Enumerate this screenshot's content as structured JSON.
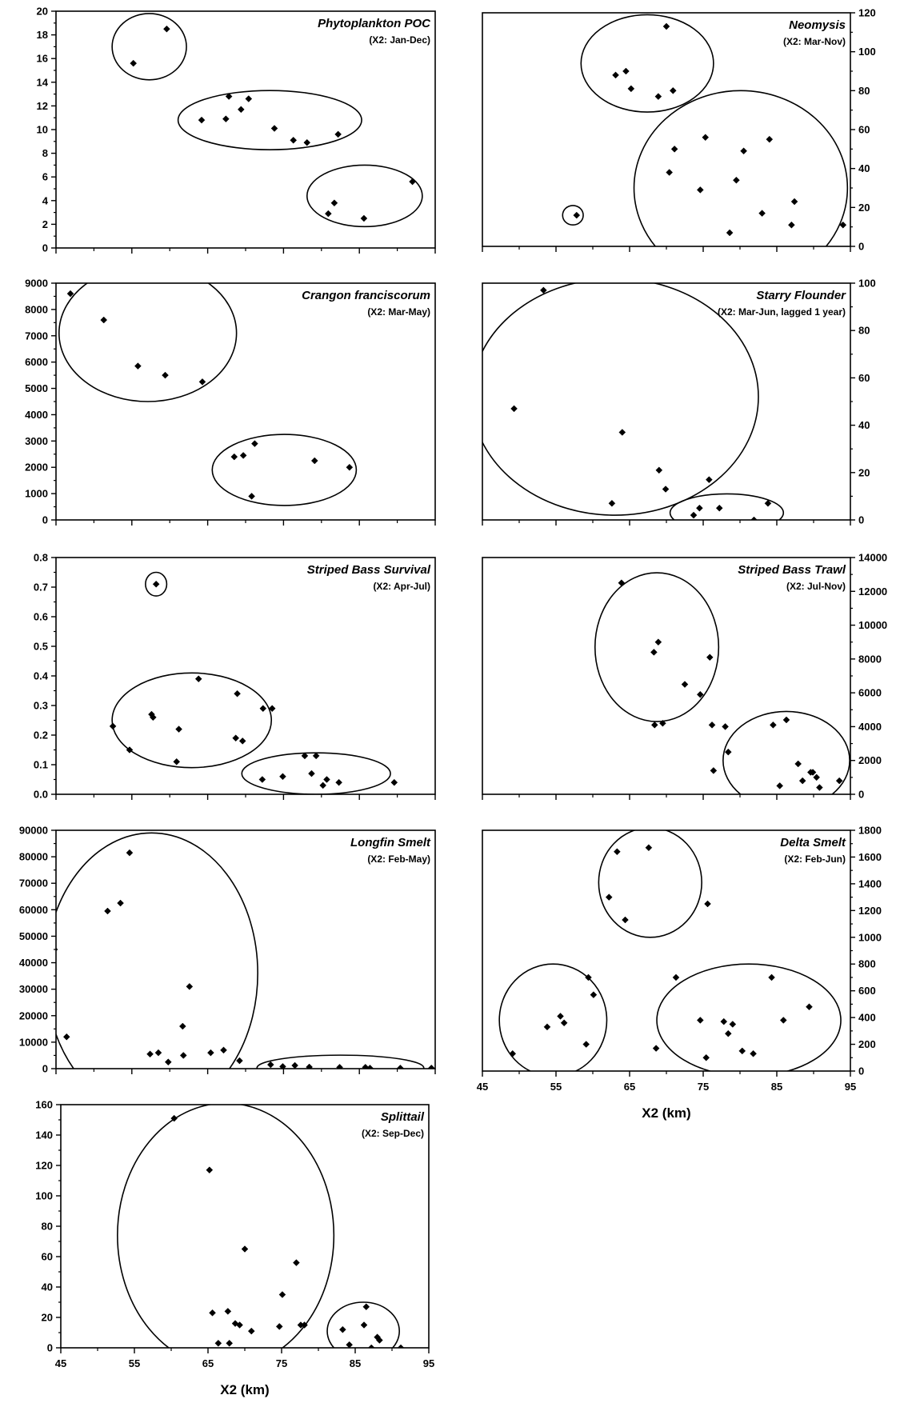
{
  "chart_data": [
    {
      "type": "scatter",
      "title": "Phytoplankton POC",
      "subtitle": "(X2: Jan-Dec)",
      "xlim": [
        45,
        95
      ],
      "ylim": [
        0,
        20
      ],
      "x_ticks": [
        45,
        55,
        65,
        75,
        85,
        95
      ],
      "y_ticks": [
        0,
        2,
        4,
        6,
        8,
        10,
        12,
        14,
        16,
        18,
        20
      ],
      "y_axis_side": "left",
      "x_tick_labels_shown": false,
      "points": [
        {
          "x": 55.2,
          "y": 15.6
        },
        {
          "x": 59.6,
          "y": 18.5
        },
        {
          "x": 64.2,
          "y": 10.8
        },
        {
          "x": 67.4,
          "y": 10.9
        },
        {
          "x": 67.8,
          "y": 12.8
        },
        {
          "x": 69.4,
          "y": 11.7
        },
        {
          "x": 70.4,
          "y": 12.6
        },
        {
          "x": 73.8,
          "y": 10.1
        },
        {
          "x": 76.3,
          "y": 9.1
        },
        {
          "x": 78.1,
          "y": 8.9
        },
        {
          "x": 82.2,
          "y": 9.6
        },
        {
          "x": 80.9,
          "y": 2.9
        },
        {
          "x": 81.7,
          "y": 3.8
        },
        {
          "x": 85.6,
          "y": 2.5
        },
        {
          "x": 92.0,
          "y": 5.6
        }
      ],
      "ellipses": [
        {
          "cx": 57.3,
          "cy": 17.0,
          "rx": 4.9,
          "ry": 2.8
        },
        {
          "cx": 73.2,
          "cy": 10.8,
          "rx": 12.1,
          "ry": 2.5
        },
        {
          "cx": 85.7,
          "cy": 4.4,
          "rx": 7.6,
          "ry": 2.6
        }
      ]
    },
    {
      "type": "scatter",
      "title": "Neomysis",
      "subtitle": "(X2: Mar-Nov)",
      "xlim": [
        45,
        95
      ],
      "ylim": [
        0,
        120
      ],
      "x_ticks": [
        45,
        55,
        65,
        75,
        85,
        95
      ],
      "y_ticks": [
        0,
        20,
        40,
        60,
        80,
        100,
        120
      ],
      "y_axis_side": "right",
      "x_tick_labels_shown": false,
      "points": [
        {
          "x": 57.8,
          "y": 16.0
        },
        {
          "x": 63.1,
          "y": 88.0
        },
        {
          "x": 64.5,
          "y": 90.0
        },
        {
          "x": 65.2,
          "y": 81.0
        },
        {
          "x": 68.9,
          "y": 77.0
        },
        {
          "x": 70.0,
          "y": 113.0
        },
        {
          "x": 70.9,
          "y": 80.0
        },
        {
          "x": 70.4,
          "y": 38.0
        },
        {
          "x": 71.1,
          "y": 50.0
        },
        {
          "x": 74.6,
          "y": 29.0
        },
        {
          "x": 75.3,
          "y": 56.0
        },
        {
          "x": 78.6,
          "y": 7.0
        },
        {
          "x": 79.5,
          "y": 34.0
        },
        {
          "x": 80.5,
          "y": 49.0
        },
        {
          "x": 83.0,
          "y": 17.0
        },
        {
          "x": 84.0,
          "y": 55.0
        },
        {
          "x": 87.0,
          "y": 11.0
        },
        {
          "x": 87.4,
          "y": 23.0
        },
        {
          "x": 94.0,
          "y": 11.0
        }
      ],
      "ellipses": [
        {
          "cx": 57.3,
          "cy": 16.0,
          "rx": 1.4,
          "ry": 5.0
        },
        {
          "cx": 67.4,
          "cy": 94.0,
          "rx": 9.0,
          "ry": 25.0
        },
        {
          "cx": 80.1,
          "cy": 30.0,
          "rx": 14.5,
          "ry": 50.0
        }
      ]
    },
    {
      "type": "scatter",
      "title": "Crangon franciscorum",
      "subtitle": "(X2: Mar-May)",
      "xlim": [
        45,
        95
      ],
      "ylim": [
        0,
        9000
      ],
      "x_ticks": [
        45,
        55,
        65,
        75,
        85,
        95
      ],
      "y_ticks": [
        0,
        1000,
        2000,
        3000,
        4000,
        5000,
        6000,
        7000,
        8000,
        9000
      ],
      "y_axis_side": "left",
      "x_tick_labels_shown": false,
      "points": [
        {
          "x": 46.9,
          "y": 8600
        },
        {
          "x": 51.3,
          "y": 7600
        },
        {
          "x": 55.8,
          "y": 5850
        },
        {
          "x": 59.4,
          "y": 5500
        },
        {
          "x": 64.3,
          "y": 5250
        },
        {
          "x": 68.5,
          "y": 2400
        },
        {
          "x": 69.7,
          "y": 2450
        },
        {
          "x": 70.8,
          "y": 900
        },
        {
          "x": 71.2,
          "y": 2900
        },
        {
          "x": 79.1,
          "y": 2250
        },
        {
          "x": 83.7,
          "y": 2000
        }
      ],
      "ellipses": [
        {
          "cx": 57.1,
          "cy": 7100,
          "rx": 11.7,
          "ry": 2600
        },
        {
          "cx": 75.1,
          "cy": 1900,
          "rx": 9.5,
          "ry": 1350
        }
      ]
    },
    {
      "type": "scatter",
      "title": "Starry Flounder",
      "subtitle": "(X2: Mar-Jun, lagged 1 year)",
      "xlim": [
        45,
        95
      ],
      "ylim": [
        0,
        100
      ],
      "x_ticks": [
        45,
        55,
        65,
        75,
        85,
        95
      ],
      "y_ticks": [
        0,
        20,
        40,
        60,
        80,
        100
      ],
      "y_axis_side": "right",
      "x_tick_labels_shown": false,
      "points": [
        {
          "x": 53.3,
          "y": 97.0
        },
        {
          "x": 49.3,
          "y": 47.0
        },
        {
          "x": 62.6,
          "y": 7.0
        },
        {
          "x": 64.0,
          "y": 37.0
        },
        {
          "x": 69.0,
          "y": 21.0
        },
        {
          "x": 69.9,
          "y": 13.0
        },
        {
          "x": 73.7,
          "y": 2.0
        },
        {
          "x": 74.5,
          "y": 5.0
        },
        {
          "x": 75.8,
          "y": 17.0
        },
        {
          "x": 77.2,
          "y": 5.0
        },
        {
          "x": 81.9,
          "y": 0.0
        },
        {
          "x": 83.8,
          "y": 7.0
        }
      ],
      "ellipses": [
        {
          "cx": 63.0,
          "cy": 52.0,
          "rx": 19.5,
          "ry": 50.0
        },
        {
          "cx": 78.2,
          "cy": 3.0,
          "rx": 7.7,
          "ry": 8.0
        }
      ]
    },
    {
      "type": "scatter",
      "title": "Striped Bass Survival",
      "subtitle": "(X2: Apr-Jul)",
      "xlim": [
        45,
        95
      ],
      "ylim": [
        0,
        0.8
      ],
      "x_ticks": [
        45,
        55,
        65,
        75,
        85,
        95
      ],
      "y_ticks": [
        0.0,
        0.1,
        0.2,
        0.3,
        0.4,
        0.5,
        0.6,
        0.7,
        0.8
      ],
      "y_axis_side": "left",
      "x_tick_labels_shown": false,
      "points": [
        {
          "x": 58.2,
          "y": 0.71
        },
        {
          "x": 52.5,
          "y": 0.23
        },
        {
          "x": 54.7,
          "y": 0.15
        },
        {
          "x": 57.6,
          "y": 0.27
        },
        {
          "x": 57.8,
          "y": 0.26
        },
        {
          "x": 60.9,
          "y": 0.11
        },
        {
          "x": 61.2,
          "y": 0.22
        },
        {
          "x": 63.8,
          "y": 0.39
        },
        {
          "x": 68.9,
          "y": 0.34
        },
        {
          "x": 68.7,
          "y": 0.19
        },
        {
          "x": 69.6,
          "y": 0.18
        },
        {
          "x": 72.3,
          "y": 0.29
        },
        {
          "x": 73.5,
          "y": 0.29
        },
        {
          "x": 72.2,
          "y": 0.05
        },
        {
          "x": 74.9,
          "y": 0.06
        },
        {
          "x": 77.8,
          "y": 0.13
        },
        {
          "x": 79.3,
          "y": 0.13
        },
        {
          "x": 78.7,
          "y": 0.07
        },
        {
          "x": 80.2,
          "y": 0.03
        },
        {
          "x": 80.7,
          "y": 0.05
        },
        {
          "x": 82.3,
          "y": 0.04
        },
        {
          "x": 89.6,
          "y": 0.04
        }
      ],
      "ellipses": [
        {
          "cx": 58.2,
          "cy": 0.71,
          "rx": 1.4,
          "ry": 0.04
        },
        {
          "cx": 62.9,
          "cy": 0.25,
          "rx": 10.5,
          "ry": 0.16
        },
        {
          "cx": 79.3,
          "cy": 0.07,
          "rx": 9.8,
          "ry": 0.07
        }
      ]
    },
    {
      "type": "scatter",
      "title": "Striped Bass Trawl",
      "subtitle": "(X2: Jul-Nov)",
      "xlim": [
        45,
        95
      ],
      "ylim": [
        0,
        14000
      ],
      "x_ticks": [
        45,
        55,
        65,
        75,
        85,
        95
      ],
      "y_ticks": [
        0,
        2000,
        4000,
        6000,
        8000,
        10000,
        12000,
        14000
      ],
      "y_axis_side": "right",
      "x_tick_labels_shown": false,
      "points": [
        {
          "x": 63.9,
          "y": 12500
        },
        {
          "x": 68.3,
          "y": 8400
        },
        {
          "x": 68.4,
          "y": 4100
        },
        {
          "x": 68.9,
          "y": 9000
        },
        {
          "x": 69.5,
          "y": 4200
        },
        {
          "x": 72.5,
          "y": 6500
        },
        {
          "x": 74.6,
          "y": 5900
        },
        {
          "x": 75.9,
          "y": 8100
        },
        {
          "x": 76.2,
          "y": 4100
        },
        {
          "x": 76.4,
          "y": 1400
        },
        {
          "x": 78.4,
          "y": 2500
        },
        {
          "x": 78.0,
          "y": 4000
        },
        {
          "x": 84.5,
          "y": 4100
        },
        {
          "x": 85.4,
          "y": 500
        },
        {
          "x": 86.3,
          "y": 4400
        },
        {
          "x": 87.9,
          "y": 1800
        },
        {
          "x": 88.5,
          "y": 800
        },
        {
          "x": 89.6,
          "y": 1300
        },
        {
          "x": 89.9,
          "y": 1300
        },
        {
          "x": 90.4,
          "y": 1000
        },
        {
          "x": 90.8,
          "y": 400
        },
        {
          "x": 93.5,
          "y": 800
        }
      ],
      "ellipses": [
        {
          "cx": 68.7,
          "cy": 8700,
          "rx": 8.4,
          "ry": 4400
        },
        {
          "cx": 86.3,
          "cy": 2000,
          "rx": 8.6,
          "ry": 2900
        }
      ]
    },
    {
      "type": "scatter",
      "title": "Longfin Smelt",
      "subtitle": "(X2: Feb-May)",
      "xlim": [
        45,
        95
      ],
      "ylim": [
        0,
        90000
      ],
      "x_ticks": [
        45,
        55,
        65,
        75,
        85,
        95
      ],
      "y_ticks": [
        0,
        10000,
        20000,
        30000,
        40000,
        50000,
        60000,
        70000,
        80000,
        90000
      ],
      "y_axis_side": "left",
      "x_tick_labels_shown": false,
      "points": [
        {
          "x": 44.8,
          "y": 45000
        },
        {
          "x": 46.4,
          "y": 12000
        },
        {
          "x": 51.8,
          "y": 59500
        },
        {
          "x": 53.5,
          "y": 62500
        },
        {
          "x": 54.7,
          "y": 81500
        },
        {
          "x": 57.4,
          "y": 5500
        },
        {
          "x": 58.5,
          "y": 6000
        },
        {
          "x": 59.8,
          "y": 2500
        },
        {
          "x": 61.7,
          "y": 16000
        },
        {
          "x": 61.8,
          "y": 5000
        },
        {
          "x": 62.6,
          "y": 31000
        },
        {
          "x": 65.4,
          "y": 6000
        },
        {
          "x": 67.1,
          "y": 7000
        },
        {
          "x": 69.2,
          "y": 3000
        },
        {
          "x": 73.3,
          "y": 1500
        },
        {
          "x": 74.9,
          "y": 800
        },
        {
          "x": 76.5,
          "y": 1200
        },
        {
          "x": 78.4,
          "y": 600
        },
        {
          "x": 82.4,
          "y": 500
        },
        {
          "x": 85.8,
          "y": 500
        },
        {
          "x": 86.4,
          "y": 200
        },
        {
          "x": 90.4,
          "y": 200
        },
        {
          "x": 94.5,
          "y": 200
        }
      ],
      "ellipses": [
        {
          "cx": 57.6,
          "cy": 36000,
          "rx": 14.0,
          "ry": 53000
        },
        {
          "cx": 82.5,
          "cy": 300,
          "rx": 11.0,
          "ry": 4800
        }
      ]
    },
    {
      "type": "scatter",
      "title": "Delta Smelt",
      "subtitle": "(X2: Feb-Jun)",
      "xlim": [
        45,
        95
      ],
      "ylim": [
        0,
        1800
      ],
      "x_ticks": [
        45,
        55,
        65,
        75,
        85,
        95
      ],
      "y_ticks": [
        0,
        200,
        400,
        600,
        800,
        1000,
        1200,
        1400,
        1600,
        1800
      ],
      "y_axis_side": "right",
      "x_tick_labels_shown": true,
      "xlabel": "X2 (km)",
      "points": [
        {
          "x": 62.2,
          "y": 1300
        },
        {
          "x": 63.3,
          "y": 1640
        },
        {
          "x": 64.4,
          "y": 1130
        },
        {
          "x": 67.6,
          "y": 1670
        },
        {
          "x": 75.6,
          "y": 1250
        },
        {
          "x": 49.1,
          "y": 130
        },
        {
          "x": 53.8,
          "y": 330
        },
        {
          "x": 55.6,
          "y": 410
        },
        {
          "x": 56.1,
          "y": 360
        },
        {
          "x": 59.1,
          "y": 200
        },
        {
          "x": 59.4,
          "y": 700
        },
        {
          "x": 60.1,
          "y": 570
        },
        {
          "x": 68.6,
          "y": 170
        },
        {
          "x": 71.3,
          "y": 700
        },
        {
          "x": 74.6,
          "y": 380
        },
        {
          "x": 75.4,
          "y": 100
        },
        {
          "x": 77.8,
          "y": 370
        },
        {
          "x": 78.4,
          "y": 280
        },
        {
          "x": 79.0,
          "y": 350
        },
        {
          "x": 80.3,
          "y": 150
        },
        {
          "x": 81.8,
          "y": 130
        },
        {
          "x": 84.3,
          "y": 700
        },
        {
          "x": 85.9,
          "y": 380
        },
        {
          "x": 89.4,
          "y": 480
        }
      ],
      "ellipses": [
        {
          "cx": 67.8,
          "cy": 1410,
          "rx": 7.0,
          "ry": 410
        },
        {
          "cx": 54.6,
          "cy": 380,
          "rx": 7.3,
          "ry": 420
        },
        {
          "cx": 81.2,
          "cy": 380,
          "rx": 12.5,
          "ry": 420
        }
      ]
    },
    {
      "type": "scatter",
      "title": "Splittail",
      "subtitle": "(X2: Sep-Dec)",
      "xlim": [
        45,
        95
      ],
      "ylim": [
        0,
        160
      ],
      "x_ticks": [
        45,
        55,
        65,
        75,
        85,
        95
      ],
      "y_ticks": [
        0,
        20,
        40,
        60,
        80,
        100,
        120,
        140,
        160
      ],
      "y_axis_side": "left",
      "x_tick_labels_shown": true,
      "xlabel": "X2 (km)",
      "points": [
        {
          "x": 60.4,
          "y": 151
        },
        {
          "x": 65.2,
          "y": 117
        },
        {
          "x": 65.6,
          "y": 23
        },
        {
          "x": 66.4,
          "y": 3
        },
        {
          "x": 67.7,
          "y": 24
        },
        {
          "x": 67.9,
          "y": 3
        },
        {
          "x": 68.7,
          "y": 16
        },
        {
          "x": 69.3,
          "y": 15
        },
        {
          "x": 70.0,
          "y": 65
        },
        {
          "x": 70.9,
          "y": 11
        },
        {
          "x": 74.7,
          "y": 14
        },
        {
          "x": 75.1,
          "y": 35
        },
        {
          "x": 77.0,
          "y": 56
        },
        {
          "x": 77.6,
          "y": 15
        },
        {
          "x": 78.1,
          "y": 15
        },
        {
          "x": 83.3,
          "y": 12
        },
        {
          "x": 84.2,
          "y": 2
        },
        {
          "x": 86.2,
          "y": 15
        },
        {
          "x": 86.5,
          "y": 27
        },
        {
          "x": 87.2,
          "y": 0
        },
        {
          "x": 88.0,
          "y": 7
        },
        {
          "x": 88.3,
          "y": 5
        },
        {
          "x": 91.2,
          "y": 0
        }
      ],
      "ellipses": [
        {
          "cx": 67.4,
          "cy": 74,
          "rx": 14.7,
          "ry": 87
        },
        {
          "cx": 86.1,
          "cy": 11,
          "rx": 4.9,
          "ry": 19
        }
      ]
    }
  ]
}
